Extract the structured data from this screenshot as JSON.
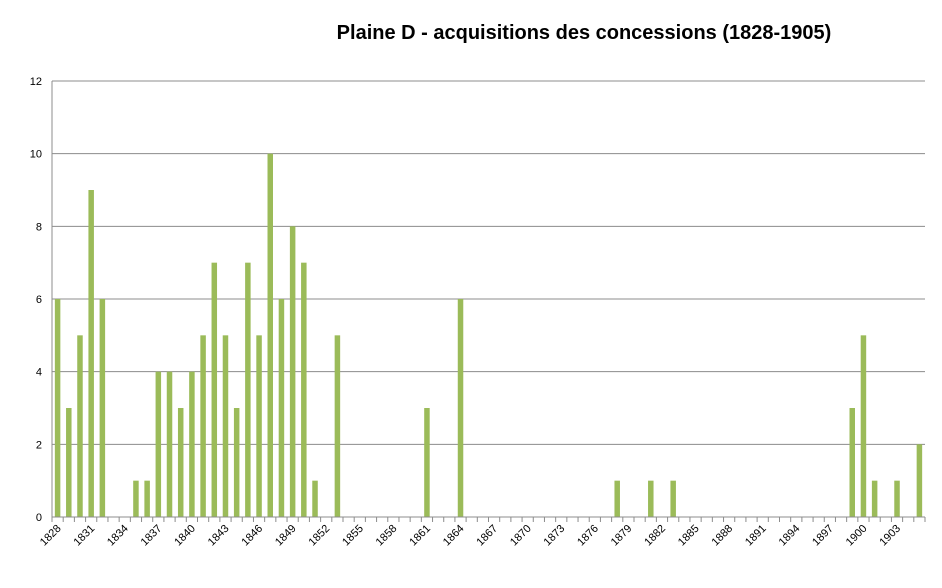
{
  "chart_data": {
    "type": "bar",
    "title": "Plaine D - acquisitions des concessions (1828-1905)",
    "xlabel": "",
    "ylabel": "",
    "ylim": [
      0,
      12
    ],
    "yticks": [
      0,
      2,
      4,
      6,
      8,
      10,
      12
    ],
    "grid": true,
    "legend": "none",
    "bar_color": "#9bbb59",
    "categories": [
      1828,
      1829,
      1830,
      1831,
      1832,
      1833,
      1834,
      1835,
      1836,
      1837,
      1838,
      1839,
      1840,
      1841,
      1842,
      1843,
      1844,
      1845,
      1846,
      1847,
      1848,
      1849,
      1850,
      1851,
      1852,
      1853,
      1854,
      1855,
      1856,
      1857,
      1858,
      1859,
      1860,
      1861,
      1862,
      1863,
      1864,
      1865,
      1866,
      1867,
      1868,
      1869,
      1870,
      1871,
      1872,
      1873,
      1874,
      1875,
      1876,
      1877,
      1878,
      1879,
      1880,
      1881,
      1882,
      1883,
      1884,
      1885,
      1886,
      1887,
      1888,
      1889,
      1890,
      1891,
      1892,
      1893,
      1894,
      1895,
      1896,
      1897,
      1898,
      1899,
      1900,
      1901,
      1902,
      1903,
      1904,
      1905
    ],
    "tick_labels": [
      1828,
      1831,
      1834,
      1837,
      1840,
      1843,
      1846,
      1849,
      1852,
      1855,
      1858,
      1861,
      1864,
      1867,
      1870,
      1873,
      1876,
      1879,
      1882,
      1885,
      1888,
      1891,
      1894,
      1897,
      1900,
      1903
    ],
    "values": [
      6,
      3,
      5,
      9,
      6,
      0,
      0,
      1,
      1,
      4,
      4,
      3,
      4,
      5,
      7,
      5,
      3,
      7,
      5,
      10,
      6,
      8,
      7,
      1,
      0,
      5,
      0,
      0,
      0,
      0,
      0,
      0,
      0,
      3,
      0,
      0,
      6,
      0,
      0,
      0,
      0,
      0,
      0,
      0,
      0,
      0,
      0,
      0,
      0,
      0,
      1,
      0,
      0,
      1,
      0,
      1,
      0,
      0,
      0,
      0,
      0,
      0,
      0,
      0,
      0,
      0,
      0,
      0,
      0,
      0,
      0,
      3,
      5,
      1,
      0,
      1,
      0,
      2
    ]
  }
}
